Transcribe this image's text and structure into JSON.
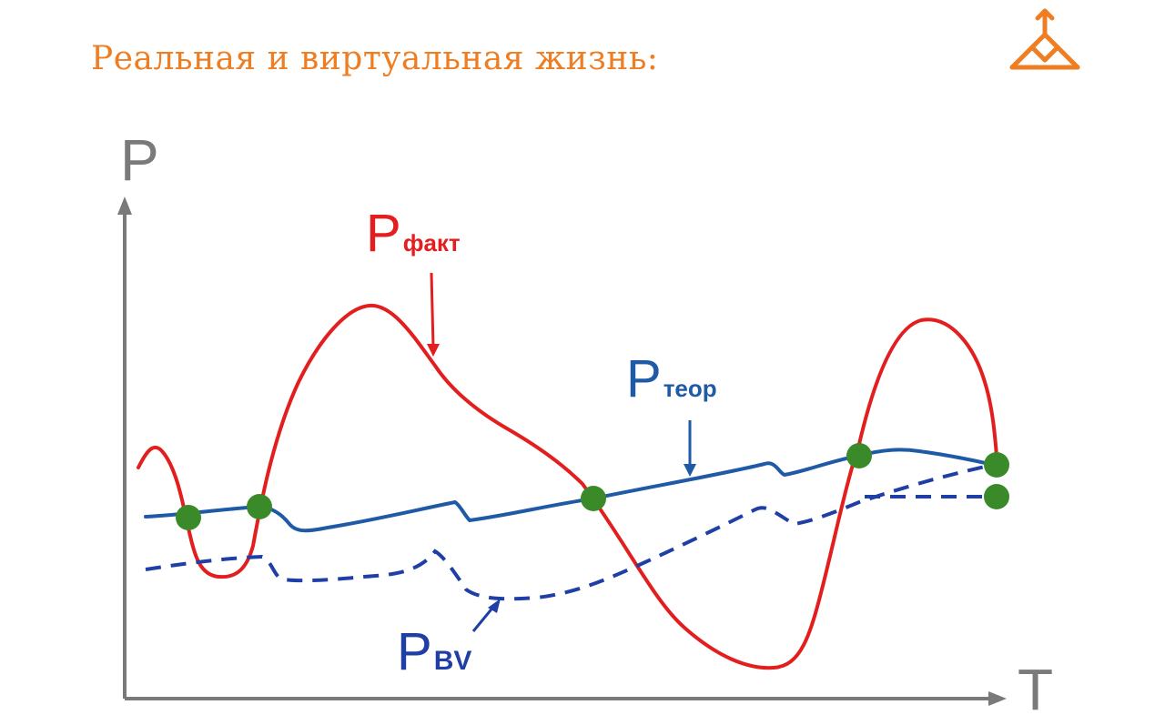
{
  "slide": {
    "title": "Реальная и виртуальная жизнь:",
    "accent_color": "#ef7d22",
    "logo_icon": "triskelion-logo-icon"
  },
  "diagram": {
    "y_axis_label": "P",
    "x_axis_label": "T",
    "axis_color": "#7a7a7a",
    "curves": {
      "fact": {
        "label_main": "P",
        "label_sub": "факт",
        "color": "#e31e1e",
        "style": "solid"
      },
      "theor": {
        "label_main": "P",
        "label_sub": "теор",
        "color": "#1f5aa6",
        "style": "solid"
      },
      "bv": {
        "label_main": "P",
        "label_sub": "BV",
        "color": "#1f3fa6",
        "style": "dashed"
      }
    },
    "intersection_color": "#3a8a2a",
    "intersection_count": 6
  }
}
